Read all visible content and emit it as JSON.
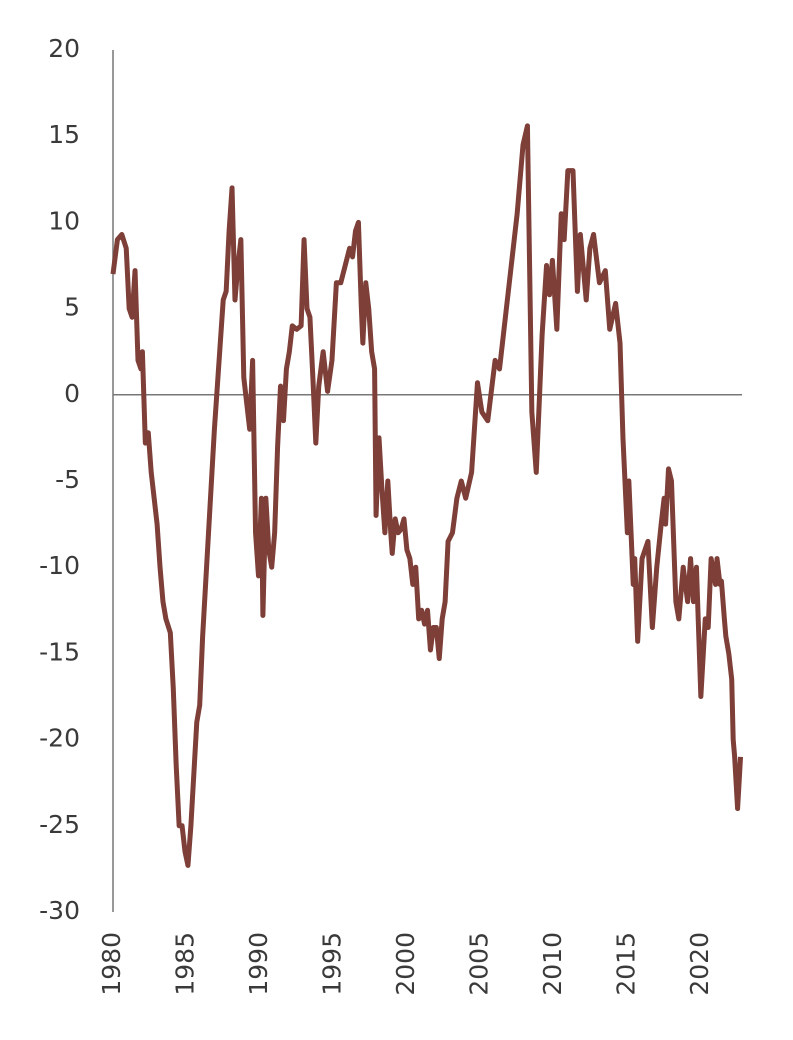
{
  "chart_data": {
    "type": "line",
    "color": "#7d3f37",
    "x": [
      1980.0,
      1980.3,
      1980.6,
      1980.9,
      1981.1,
      1981.3,
      1981.5,
      1981.7,
      1981.9,
      1982.0,
      1982.2,
      1982.4,
      1982.6,
      1982.8,
      1983.0,
      1983.2,
      1983.4,
      1983.6,
      1983.9,
      1984.1,
      1984.3,
      1984.5,
      1984.7,
      1984.9,
      1985.1,
      1985.3,
      1985.5,
      1985.7,
      1985.9,
      1986.1,
      1986.3,
      1986.5,
      1986.7,
      1986.9,
      1987.1,
      1987.3,
      1987.5,
      1987.7,
      1987.9,
      1988.1,
      1988.3,
      1988.5,
      1988.7,
      1988.9,
      1989.1,
      1989.3,
      1989.5,
      1989.7,
      1989.9,
      1990.1,
      1990.2,
      1990.4,
      1990.6,
      1990.8,
      1991.0,
      1991.2,
      1991.4,
      1991.6,
      1991.8,
      1992.0,
      1992.2,
      1992.5,
      1992.8,
      1993.0,
      1993.2,
      1993.4,
      1993.6,
      1993.8,
      1994.0,
      1994.3,
      1994.6,
      1994.9,
      1995.2,
      1995.5,
      1995.8,
      1996.1,
      1996.3,
      1996.5,
      1996.7,
      1996.9,
      1997.0,
      1997.2,
      1997.4,
      1997.6,
      1997.8,
      1997.9,
      1998.1,
      1998.3,
      1998.5,
      1998.7,
      1998.9,
      1999.0,
      1999.2,
      1999.4,
      1999.6,
      1999.8,
      2000.0,
      2000.2,
      2000.4,
      2000.6,
      2000.8,
      2001.0,
      2001.2,
      2001.4,
      2001.6,
      2001.8,
      2002.0,
      2002.2,
      2002.4,
      2002.6,
      2002.8,
      2003.1,
      2003.4,
      2003.7,
      2004.0,
      2004.4,
      2004.8,
      2005.1,
      2005.5,
      2006.0,
      2006.3,
      2006.7,
      2007.1,
      2007.5,
      2007.9,
      2008.2,
      2008.5,
      2008.8,
      2009.2,
      2009.5,
      2009.7,
      2009.9,
      2010.2,
      2010.5,
      2010.7,
      2010.95,
      2011.3,
      2011.6,
      2011.8,
      2012.2,
      2012.45,
      2012.7,
      2013.1,
      2013.5,
      2013.8,
      2014.2,
      2014.5,
      2014.7,
      2015.0,
      2015.1,
      2015.4,
      2015.5,
      2015.7,
      2016.0,
      2016.4,
      2016.7,
      2017.0,
      2017.3,
      2017.5,
      2017.6,
      2017.8,
      2018.0,
      2018.3,
      2018.5,
      2018.8,
      2019.1,
      2019.3,
      2019.5,
      2019.7,
      2020.0,
      2020.3,
      2020.5,
      2020.7,
      2021.0,
      2021.1,
      2021.3,
      2021.4,
      2021.6,
      2021.7,
      2021.9,
      2022.1,
      2022.2,
      2022.3,
      2022.5,
      2022.7
    ],
    "values": [
      7,
      9,
      9.3,
      8.5,
      5,
      4.5,
      7.2,
      2,
      1.5,
      2.5,
      -2.8,
      -2.2,
      -4.5,
      -6,
      -7.5,
      -10,
      -12,
      -13,
      -13.8,
      -17,
      -21.5,
      -25,
      -25,
      -26.5,
      -27.3,
      -25,
      -22,
      -19,
      -18,
      -14,
      -11,
      -8,
      -5,
      -2,
      0.5,
      3,
      5.5,
      6,
      9.5,
      12,
      5.5,
      7.5,
      9,
      1,
      -0.5,
      -2,
      2,
      -8,
      -10.5,
      -6,
      -12.8,
      -6,
      -9,
      -10,
      -8,
      -3,
      0.5,
      -1.5,
      1.5,
      2.5,
      4,
      3.8,
      4,
      9,
      5,
      4.5,
      1,
      -2.8,
      0.5,
      2.5,
      0.2,
      2,
      6.5,
      6.5,
      7.5,
      8.5,
      8,
      9.5,
      10,
      5,
      3,
      6.5,
      5,
      2.5,
      1.5,
      -7,
      -2.5,
      -5.5,
      -8,
      -5,
      -8,
      -9.2,
      -7.2,
      -8,
      -7.8,
      -7.2,
      -9,
      -9.5,
      -11,
      -10,
      -13,
      -12.5,
      -13.3,
      -12.5,
      -14.8,
      -13.5,
      -13.5,
      -15.3,
      -13,
      -12,
      -8.5,
      -8,
      -6,
      -5,
      -6,
      -4.5,
      0.7,
      -1,
      -1.5,
      2,
      1.5,
      4.5,
      7.5,
      10.5,
      14.5,
      15.6,
      -1,
      -4.5,
      3.5,
      7.5,
      5.8,
      7.8,
      3.8,
      10.5,
      9,
      13,
      13,
      6,
      9.3,
      5.5,
      8.5,
      9.3,
      6.5,
      7.2,
      3.8,
      5.3,
      3,
      -2.5,
      -8,
      -5,
      -11,
      -9.5,
      -14.3,
      -9.5,
      -8.5,
      -13.5,
      -10,
      -7.5,
      -6,
      -7.5,
      -4.3,
      -5,
      -12,
      -13,
      -10,
      -12,
      -9.5,
      -12,
      -10,
      -17.5,
      -13,
      -13.5,
      -9.5,
      -11,
      -9.5,
      -11,
      -10.8,
      -13,
      -14,
      -15,
      -16.5,
      -20,
      -21,
      -24,
      -21
    ],
    "xlim": [
      1980,
      2022.8
    ],
    "xticks": [
      1980,
      1985,
      1990,
      1995,
      2000,
      2005,
      2010,
      2015,
      2020
    ],
    "ylim": [
      -30,
      20
    ],
    "yticks": [
      20,
      15,
      10,
      5,
      0,
      -5,
      -10,
      -15,
      -20,
      -25,
      -30
    ]
  }
}
